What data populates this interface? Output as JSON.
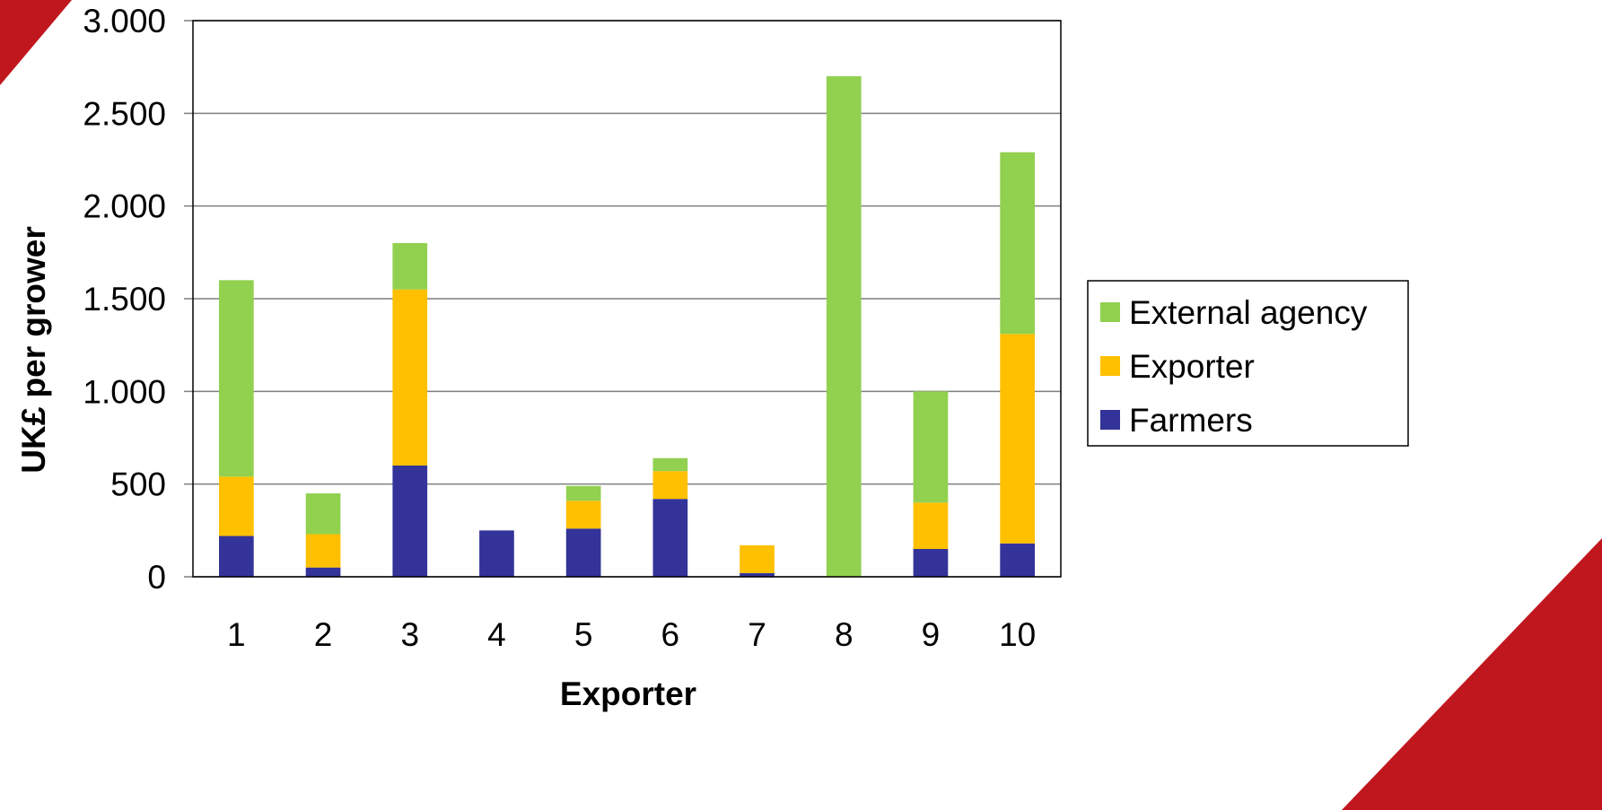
{
  "colors": {
    "decoration": "#c0171f",
    "gridline": "#7f7f7f",
    "axis": "#7f7f7f",
    "plot_border": "#000000"
  },
  "chart_data": {
    "type": "bar",
    "stacked": true,
    "title": "",
    "xlabel": "Exporter",
    "ylabel": "UK£ per grower",
    "categories": [
      "1",
      "2",
      "3",
      "4",
      "5",
      "6",
      "7",
      "8",
      "9",
      "10"
    ],
    "ylim": [
      0,
      3000
    ],
    "yticks": [
      0,
      500,
      1000,
      1500,
      2000,
      2500,
      3000
    ],
    "ytick_labels": [
      "0",
      "500",
      "1.000",
      "1.500",
      "2.000",
      "2.500",
      "3.000"
    ],
    "grid": true,
    "legend_position": "right",
    "series": [
      {
        "name": "Farmers",
        "color": "#333399",
        "values": [
          220,
          50,
          600,
          250,
          260,
          420,
          20,
          0,
          150,
          180
        ]
      },
      {
        "name": "Exporter",
        "color": "#ffc000",
        "values": [
          320,
          180,
          950,
          0,
          150,
          150,
          150,
          0,
          250,
          1130
        ]
      },
      {
        "name": "External agency",
        "color": "#92d050",
        "values": [
          1060,
          220,
          250,
          0,
          80,
          70,
          0,
          2700,
          600,
          980
        ]
      }
    ],
    "legend_order": [
      "External agency",
      "Exporter",
      "Farmers"
    ]
  }
}
